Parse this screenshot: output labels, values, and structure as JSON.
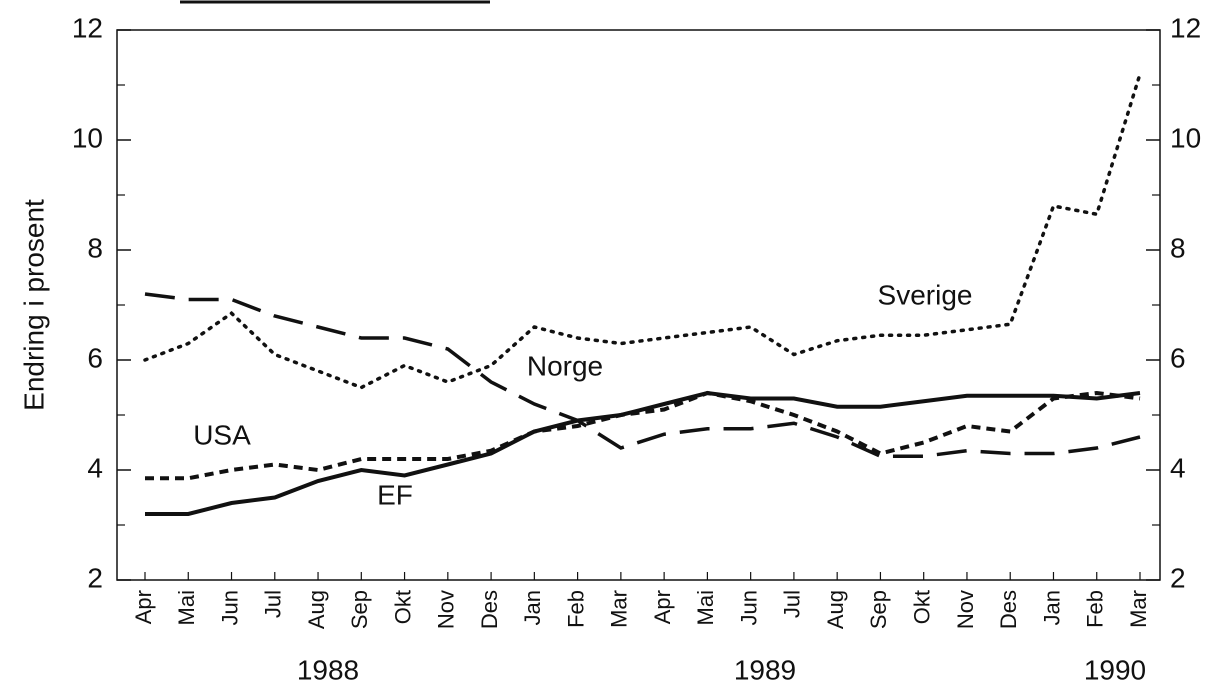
{
  "chart_data": {
    "type": "line",
    "y_label": "Endring i prosent",
    "categories": [
      "Apr",
      "Mai",
      "Jun",
      "Jul",
      "Aug",
      "Sep",
      "Okt",
      "Nov",
      "Des",
      "Jan",
      "Feb",
      "Mar",
      "Apr",
      "Mai",
      "Jun",
      "Jul",
      "Aug",
      "Sep",
      "Okt",
      "Nov",
      "Des",
      "Jan",
      "Feb",
      "Mar"
    ],
    "year_labels": [
      "1988",
      "1989",
      "1990"
    ],
    "series": [
      {
        "name": "EF",
        "color": "#111111",
        "style": "solid",
        "values": [
          3.2,
          3.2,
          3.4,
          3.5,
          3.8,
          4.0,
          3.9,
          4.1,
          4.3,
          4.7,
          4.9,
          5.0,
          5.2,
          5.4,
          5.3,
          5.3,
          5.15,
          5.15,
          5.25,
          5.35,
          5.35,
          5.35,
          5.3,
          5.4
        ]
      },
      {
        "name": "USA",
        "color": "#111111",
        "style": "short-dash",
        "values": [
          3.85,
          3.85,
          4.0,
          4.1,
          4.0,
          4.2,
          4.2,
          4.2,
          4.35,
          4.7,
          4.8,
          5.0,
          5.1,
          5.4,
          5.25,
          5.0,
          4.7,
          4.3,
          4.5,
          4.8,
          4.7,
          5.3,
          5.4,
          5.3
        ]
      },
      {
        "name": "Norge",
        "color": "#111111",
        "style": "long-dash",
        "values": [
          7.2,
          7.1,
          7.1,
          6.8,
          6.6,
          6.4,
          6.4,
          6.2,
          5.6,
          5.2,
          4.9,
          4.4,
          4.65,
          4.75,
          4.75,
          4.85,
          4.6,
          4.25,
          4.25,
          4.35,
          4.3,
          4.3,
          4.4,
          4.6
        ]
      },
      {
        "name": "Sverige",
        "color": "#111111",
        "style": "dotted",
        "values": [
          6.0,
          6.3,
          6.85,
          6.1,
          5.8,
          5.5,
          5.9,
          5.6,
          5.9,
          6.6,
          6.4,
          6.3,
          6.4,
          6.5,
          6.6,
          6.1,
          6.35,
          6.45,
          6.45,
          6.55,
          6.65,
          8.8,
          8.65,
          11.2
        ]
      }
    ],
    "ylim": [
      2,
      12
    ],
    "yticks": [
      2,
      4,
      6,
      8,
      10,
      12
    ],
    "minor_yticks": [
      3,
      5,
      7,
      9,
      11
    ],
    "y2lim": [
      2,
      12
    ],
    "y2ticks": [
      2,
      4,
      6,
      8,
      10,
      12
    ],
    "grid": false
  }
}
